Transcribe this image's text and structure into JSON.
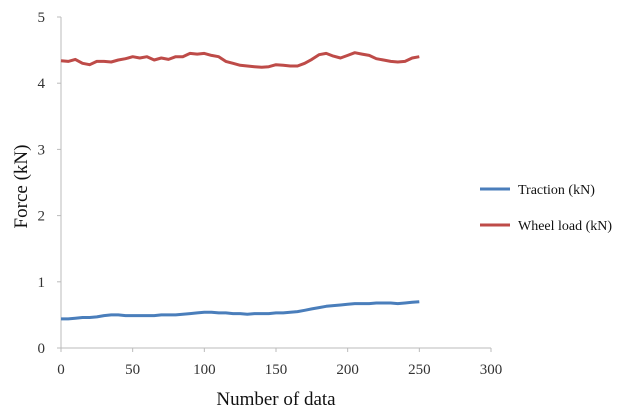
{
  "chart_data": {
    "type": "line",
    "title": "",
    "xlabel": "Number of data",
    "ylabel": "Force (kN)",
    "xlim": [
      0,
      300
    ],
    "ylim": [
      0,
      5
    ],
    "x_ticks": [
      0,
      50,
      100,
      150,
      200,
      250,
      300
    ],
    "y_ticks": [
      0,
      1,
      2,
      3,
      4,
      5
    ],
    "grid": false,
    "legend_position": "right",
    "x": [
      0,
      5,
      10,
      15,
      20,
      25,
      30,
      35,
      40,
      45,
      50,
      55,
      60,
      65,
      70,
      75,
      80,
      85,
      90,
      95,
      100,
      105,
      110,
      115,
      120,
      125,
      130,
      135,
      140,
      145,
      150,
      155,
      160,
      165,
      170,
      175,
      180,
      185,
      190,
      195,
      200,
      205,
      210,
      215,
      220,
      225,
      230,
      235,
      240,
      245,
      250
    ],
    "series": [
      {
        "name": "Traction (kN)",
        "color": "#4a7ebb",
        "values": [
          0.44,
          0.44,
          0.45,
          0.46,
          0.46,
          0.47,
          0.49,
          0.5,
          0.5,
          0.49,
          0.49,
          0.49,
          0.49,
          0.49,
          0.5,
          0.5,
          0.5,
          0.51,
          0.52,
          0.53,
          0.54,
          0.54,
          0.53,
          0.53,
          0.52,
          0.52,
          0.51,
          0.52,
          0.52,
          0.52,
          0.53,
          0.53,
          0.54,
          0.55,
          0.57,
          0.59,
          0.61,
          0.63,
          0.64,
          0.65,
          0.66,
          0.67,
          0.67,
          0.67,
          0.68,
          0.68,
          0.68,
          0.67,
          0.68,
          0.69,
          0.7
        ]
      },
      {
        "name": "Wheel load (kN)",
        "color": "#be4b48",
        "values": [
          4.34,
          4.33,
          4.36,
          4.3,
          4.28,
          4.33,
          4.33,
          4.32,
          4.35,
          4.37,
          4.4,
          4.38,
          4.4,
          4.35,
          4.38,
          4.36,
          4.4,
          4.4,
          4.45,
          4.44,
          4.45,
          4.42,
          4.4,
          4.33,
          4.3,
          4.27,
          4.26,
          4.25,
          4.24,
          4.25,
          4.28,
          4.27,
          4.26,
          4.26,
          4.3,
          4.36,
          4.43,
          4.45,
          4.41,
          4.38,
          4.42,
          4.46,
          4.44,
          4.42,
          4.37,
          4.35,
          4.33,
          4.32,
          4.33,
          4.38,
          4.4
        ]
      }
    ]
  }
}
